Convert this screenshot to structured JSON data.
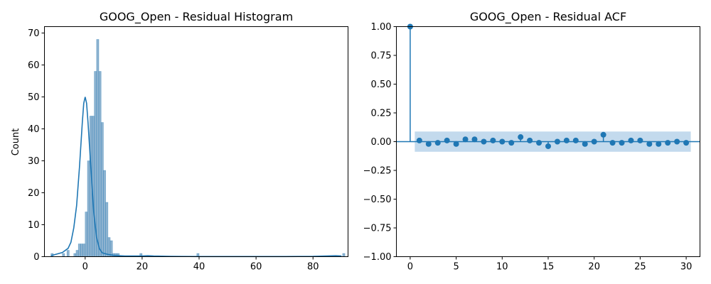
{
  "colors": {
    "series": "#1f77b4",
    "bar_fill": "#7aa6c8",
    "conf_band": "#b9d3ea"
  },
  "chart_data": [
    {
      "type": "histogram",
      "title": "GOOG_Open - Residual Histogram",
      "xlabel": "",
      "ylabel": "Count",
      "xlim": [
        -14.3,
        92.3
      ],
      "ylim": [
        0,
        72
      ],
      "xticks": [
        0,
        20,
        40,
        60,
        80
      ],
      "yticks": [
        0,
        10,
        20,
        30,
        40,
        50,
        60,
        70
      ],
      "bin_start": -12.0,
      "bin_width": 0.8,
      "counts": [
        1,
        0,
        0,
        0,
        0,
        1,
        0,
        2,
        0,
        0,
        1,
        2,
        4,
        4,
        4,
        14,
        30,
        44,
        44,
        58,
        68,
        58,
        42,
        27,
        17,
        6,
        5,
        1,
        1,
        1,
        0,
        0,
        0,
        0,
        0,
        0,
        0,
        0,
        0,
        1,
        0,
        0,
        0,
        0,
        0,
        0,
        0,
        0,
        0,
        0,
        0,
        0,
        0,
        0,
        0,
        0,
        0,
        0,
        0,
        0,
        0,
        0,
        0,
        0,
        1,
        0,
        0,
        0,
        0,
        0,
        0,
        0,
        0,
        0,
        0,
        0,
        0,
        0,
        0,
        0,
        0,
        0,
        0,
        0,
        0,
        0,
        0,
        0,
        0,
        0,
        0,
        0,
        0,
        0,
        0,
        0,
        0,
        0,
        0,
        0,
        0,
        0,
        0,
        0,
        0,
        0,
        0,
        0,
        0,
        0,
        0,
        0,
        0,
        0,
        0,
        0,
        0,
        0,
        0,
        0,
        0,
        0,
        0,
        0,
        0,
        0,
        0,
        0,
        1
      ],
      "kde": {
        "x": [
          -12,
          -10,
          -8,
          -6,
          -5,
          -4,
          -3,
          -2,
          -1.5,
          -1,
          -0.5,
          0,
          0.5,
          1,
          1.5,
          2,
          3,
          4,
          5,
          6,
          8,
          10,
          12,
          14,
          16,
          18,
          20,
          22,
          24,
          30,
          40,
          50,
          60,
          70,
          80,
          88,
          90
        ],
        "y": [
          0.3,
          0.8,
          1.3,
          2.6,
          4.5,
          9,
          16,
          28,
          35,
          42,
          48,
          50,
          48,
          42,
          35,
          28,
          14,
          6,
          2.5,
          1.2,
          0.7,
          0.4,
          0.3,
          0.2,
          0.2,
          0.2,
          0.2,
          0.3,
          0.2,
          0.1,
          0.05,
          0.05,
          0.05,
          0.05,
          0.1,
          0.3,
          0.2
        ]
      }
    },
    {
      "type": "stem",
      "title": "GOOG_Open - Residual ACF",
      "xlabel": "",
      "ylabel": "",
      "xlim": [
        -1.5,
        31.5
      ],
      "ylim": [
        -1.0,
        1.0
      ],
      "xticks": [
        0,
        5,
        10,
        15,
        20,
        25,
        30
      ],
      "yticks": [
        -1.0,
        -0.75,
        -0.5,
        -0.25,
        0.0,
        0.25,
        0.5,
        0.75,
        1.0
      ],
      "ytick_labels": [
        "−1.00",
        "−0.75",
        "−0.50",
        "−0.25",
        "0.00",
        "0.25",
        "0.50",
        "0.75",
        "1.00"
      ],
      "lags": [
        0,
        1,
        2,
        3,
        4,
        5,
        6,
        7,
        8,
        9,
        10,
        11,
        12,
        13,
        14,
        15,
        16,
        17,
        18,
        19,
        20,
        21,
        22,
        23,
        24,
        25,
        26,
        27,
        28,
        29,
        30
      ],
      "acf": [
        1.0,
        0.01,
        -0.02,
        -0.01,
        0.01,
        -0.02,
        0.02,
        0.02,
        0.0,
        0.01,
        0.0,
        -0.01,
        0.04,
        0.01,
        -0.01,
        -0.04,
        0.0,
        0.01,
        0.01,
        -0.02,
        0.0,
        0.06,
        -0.01,
        -0.01,
        0.01,
        0.01,
        -0.02,
        -0.02,
        -0.01,
        0.0,
        -0.01
      ],
      "conf_interval": [
        -0.088,
        0.088
      ],
      "conf_band_lag_range": [
        0.5,
        30.5
      ]
    }
  ]
}
